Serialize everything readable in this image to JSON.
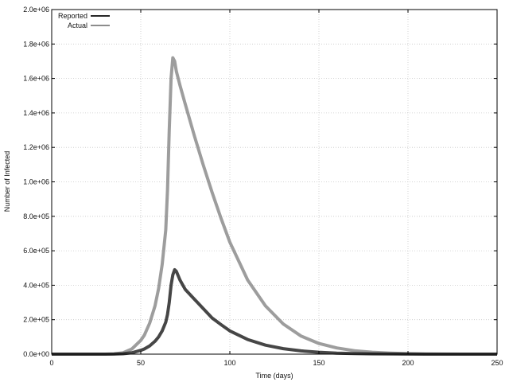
{
  "chart_data": {
    "type": "line",
    "title": "",
    "xlabel": "Time (days)",
    "ylabel": "Number of Infected",
    "xlim": [
      0,
      250
    ],
    "ylim": [
      0,
      2000000
    ],
    "x_ticks": [
      "0",
      "50",
      "100",
      "150",
      "200",
      "250"
    ],
    "y_ticks": [
      "0.0e+00",
      "2.0e+05",
      "4.0e+05",
      "6.0e+05",
      "8.0e+05",
      "1.0e+06",
      "1.2e+06",
      "1.4e+06",
      "1.6e+06",
      "1.8e+06",
      "2.0e+06"
    ],
    "grid": true,
    "legend_position": "top-left",
    "x": [
      0,
      20,
      30,
      35,
      40,
      45,
      50,
      52,
      55,
      58,
      60,
      62,
      64,
      65,
      66,
      67,
      68,
      69,
      70,
      72,
      75,
      80,
      85,
      90,
      95,
      100,
      110,
      120,
      130,
      140,
      150,
      160,
      170,
      180,
      190,
      200,
      210,
      220,
      230,
      250
    ],
    "series": [
      {
        "name": "Reported",
        "color": "#262626",
        "values": [
          0,
          0,
          0,
          600,
          2500,
          8000,
          22000,
          30000,
          48000,
          75000,
          100000,
          135000,
          185000,
          230000,
          300000,
          400000,
          460000,
          490000,
          480000,
          430000,
          375000,
          320000,
          265000,
          210000,
          172000,
          135000,
          85000,
          52000,
          32000,
          19000,
          11000,
          6000,
          3500,
          1800,
          900,
          400,
          150,
          60,
          20,
          0
        ]
      },
      {
        "name": "Actual",
        "color": "#8c8c8c",
        "values": [
          0,
          0,
          0,
          2000,
          8000,
          30000,
          80000,
          110000,
          180000,
          280000,
          380000,
          520000,
          720000,
          950000,
          1300000,
          1600000,
          1720000,
          1700000,
          1640000,
          1560000,
          1450000,
          1270000,
          1100000,
          940000,
          790000,
          650000,
          430000,
          280000,
          175000,
          105000,
          62000,
          36000,
          20000,
          11000,
          6000,
          3000,
          1400,
          600,
          200,
          0
        ]
      }
    ]
  }
}
